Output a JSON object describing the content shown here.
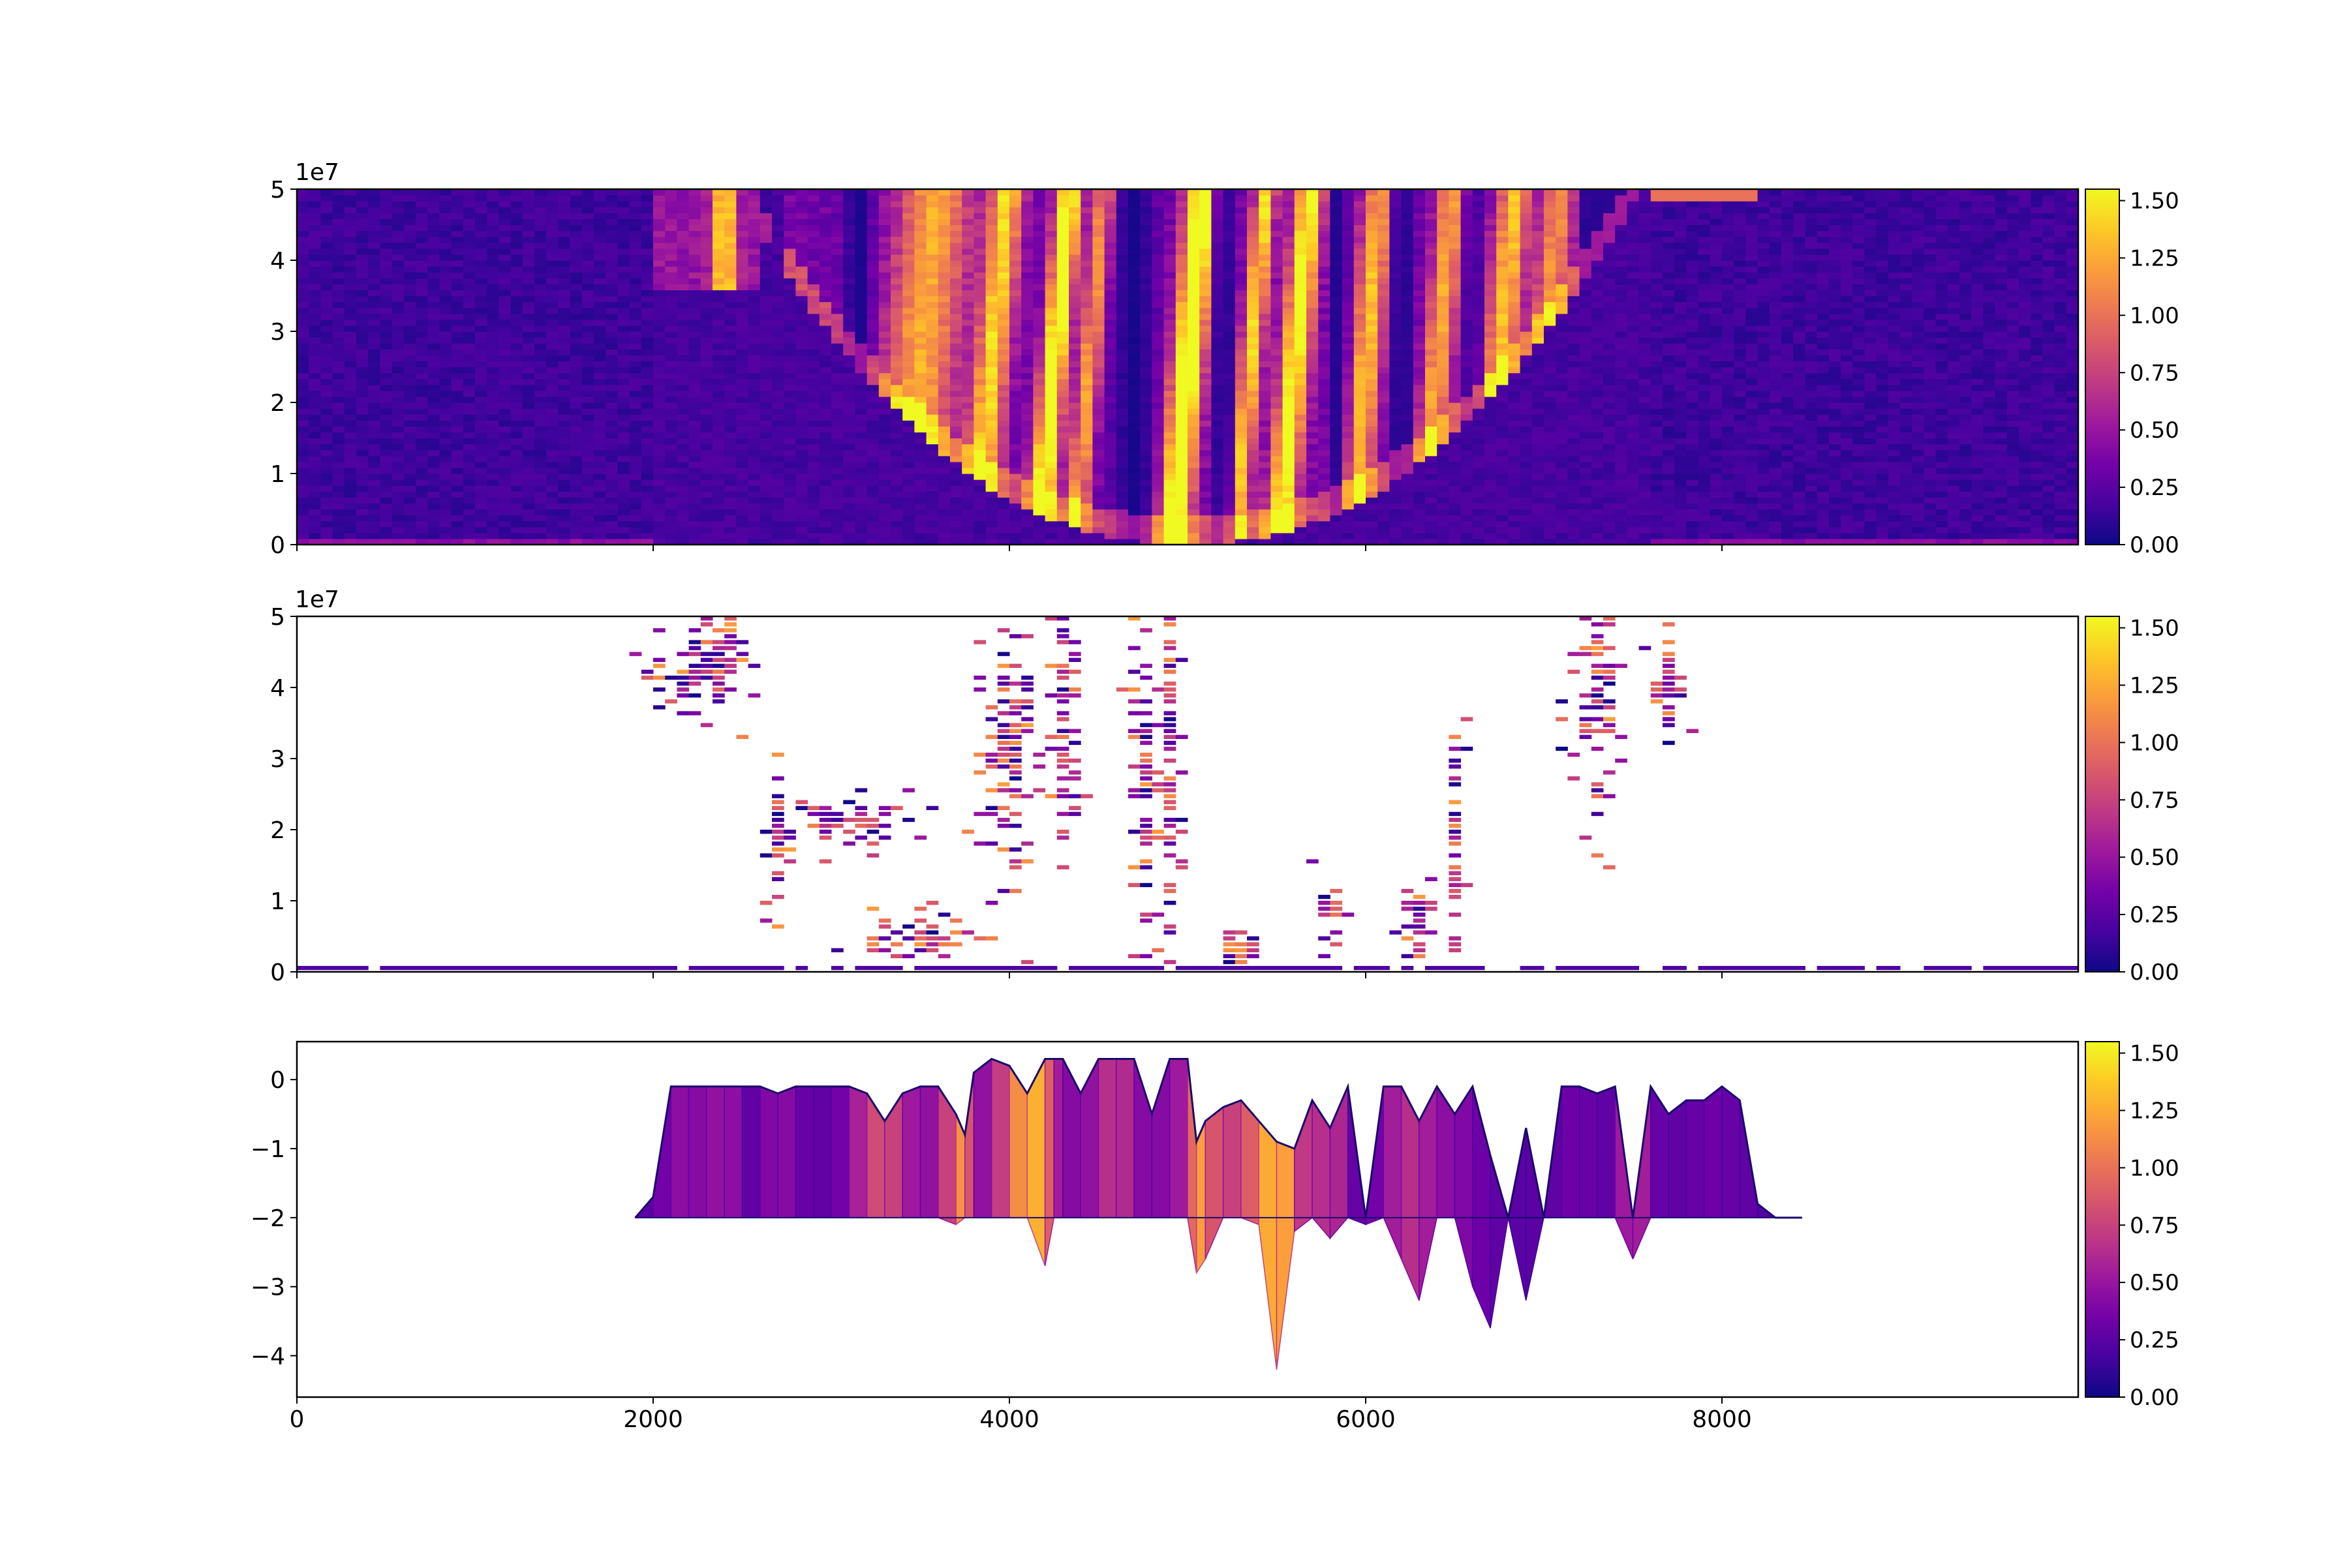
{
  "figure": {
    "colormap": "plasma",
    "colormap_stops": [
      "#0d0887",
      "#46039f",
      "#7201a8",
      "#9c179e",
      "#bd3786",
      "#d8576b",
      "#ed7953",
      "#fb9f3a",
      "#fdca26",
      "#f0f921"
    ],
    "nodata_color": "#ffffff",
    "shared_x_ticks": [
      0,
      2000,
      4000,
      6000,
      8000
    ],
    "x_tick_labels": [
      "0",
      "2000",
      "4000",
      "6000",
      "8000"
    ]
  },
  "chart_data": [
    {
      "panel": "top",
      "type": "heatmap",
      "title": "",
      "xlabel": "",
      "ylabel": "",
      "xlim": [
        0,
        10000
      ],
      "ylim": [
        0,
        50000000
      ],
      "y_offset_label": "1e7",
      "y_ticks": [
        0,
        10000000,
        20000000,
        30000000,
        40000000,
        50000000
      ],
      "y_tick_labels": [
        "0",
        "1",
        "2",
        "3",
        "4",
        "5"
      ],
      "colorbar": {
        "vmin": 0.0,
        "vmax": 1.55,
        "ticks": [
          "0.00",
          "0.25",
          "0.50",
          "0.75",
          "1.00",
          "1.25",
          "1.50"
        ]
      },
      "description_of_pattern": "dense spectrogram; bright streaks between x≈2000 and x≈7200, dark blue elsewhere"
    },
    {
      "panel": "middle",
      "type": "heatmap",
      "title": "",
      "xlabel": "",
      "ylabel": "",
      "xlim": [
        0,
        10000
      ],
      "ylim": [
        0,
        50000000
      ],
      "y_offset_label": "1e7",
      "y_ticks": [
        0,
        10000000,
        20000000,
        30000000,
        40000000,
        50000000
      ],
      "y_tick_labels": [
        "0",
        "1",
        "2",
        "3",
        "4",
        "5"
      ],
      "colorbar": {
        "vmin": 0.0,
        "vmax": 1.55,
        "ticks": [
          "0.00",
          "0.25",
          "0.50",
          "0.75",
          "1.00",
          "1.25",
          "1.50"
        ]
      },
      "description_of_pattern": "thresholded (masked) version of the top heatmap; sparse colored cells on white"
    },
    {
      "panel": "bottom",
      "type": "area",
      "title": "",
      "xlabel": "",
      "ylabel": "",
      "xlim": [
        0,
        10000
      ],
      "ylim": [
        -4.6,
        0.55
      ],
      "y_ticks": [
        0,
        -1,
        -2,
        -3,
        -4
      ],
      "y_tick_labels": [
        "0",
        "−1",
        "−2",
        "−3",
        "−4"
      ],
      "baseline": -2,
      "colorbar": {
        "vmin": 0.0,
        "vmax": 1.55,
        "ticks": [
          "0.00",
          "0.25",
          "0.50",
          "0.75",
          "1.00",
          "1.25",
          "1.50"
        ]
      },
      "x": [
        1900,
        2000,
        2100,
        2200,
        2300,
        2400,
        2500,
        2600,
        2700,
        2800,
        2900,
        3000,
        3100,
        3200,
        3300,
        3400,
        3500,
        3600,
        3700,
        3750,
        3800,
        3900,
        4000,
        4100,
        4200,
        4250,
        4300,
        4400,
        4500,
        4600,
        4700,
        4800,
        4900,
        5000,
        5050,
        5100,
        5200,
        5300,
        5400,
        5500,
        5600,
        5700,
        5800,
        5900,
        6000,
        6100,
        6200,
        6300,
        6400,
        6500,
        6600,
        6700,
        6800,
        6900,
        7000,
        7100,
        7200,
        7300,
        7400,
        7500,
        7600,
        7700,
        7800,
        7900,
        8000,
        8100,
        8200,
        8300,
        8450
      ],
      "top": [
        -2.0,
        -1.7,
        -0.1,
        -0.1,
        -0.1,
        -0.1,
        -0.1,
        -0.1,
        -0.2,
        -0.1,
        -0.1,
        -0.1,
        -0.1,
        -0.2,
        -0.6,
        -0.2,
        -0.1,
        -0.1,
        -0.5,
        -0.8,
        0.1,
        0.3,
        0.2,
        -0.2,
        0.3,
        0.3,
        0.3,
        -0.2,
        0.3,
        0.3,
        0.3,
        -0.5,
        0.3,
        0.3,
        -0.9,
        -0.6,
        -0.4,
        -0.3,
        -0.6,
        -0.9,
        -1.0,
        -0.3,
        -0.7,
        -0.1,
        -2.0,
        -0.1,
        -0.1,
        -0.6,
        -0.1,
        -0.5,
        -0.1,
        -1.1,
        -2.0,
        -0.7,
        -2.0,
        -0.1,
        -0.1,
        -0.2,
        -0.1,
        -2.0,
        -0.1,
        -0.5,
        -0.3,
        -0.3,
        -0.1,
        -0.3,
        -1.8,
        -2.0,
        -2.0
      ],
      "bottom": [
        -2.0,
        -2.0,
        -2.0,
        -2.0,
        -2.0,
        -2.0,
        -2.0,
        -2.0,
        -2.0,
        -2.0,
        -2.0,
        -2.0,
        -2.0,
        -2.0,
        -2.0,
        -2.0,
        -2.0,
        -2.0,
        -2.1,
        -2.0,
        -2.0,
        -2.0,
        -2.0,
        -2.0,
        -2.7,
        -2.0,
        -2.0,
        -2.0,
        -2.0,
        -2.0,
        -2.0,
        -2.0,
        -2.0,
        -2.0,
        -2.8,
        -2.6,
        -2.0,
        -2.0,
        -2.1,
        -4.2,
        -2.2,
        -2.0,
        -2.3,
        -2.0,
        -2.1,
        -2.0,
        -2.6,
        -3.2,
        -2.0,
        -2.0,
        -3.0,
        -3.6,
        -2.0,
        -3.2,
        -2.0,
        -2.0,
        -2.0,
        -2.0,
        -2.0,
        -2.6,
        -2.0,
        -2.0,
        -2.0,
        -2.0,
        -2.0,
        -2.0,
        -2.0,
        -2.0,
        -2.0
      ],
      "fill_level": [
        0.2,
        0.3,
        0.4,
        0.5,
        0.35,
        0.6,
        0.3,
        0.25,
        0.55,
        0.3,
        0.3,
        0.25,
        0.45,
        0.7,
        0.9,
        0.6,
        0.45,
        0.5,
        1.0,
        1.3,
        0.4,
        0.55,
        0.9,
        1.35,
        1.2,
        0.6,
        0.5,
        0.35,
        0.6,
        0.7,
        0.55,
        0.3,
        0.55,
        0.5,
        1.4,
        1.0,
        0.7,
        0.8,
        1.0,
        1.5,
        0.9,
        0.5,
        0.8,
        0.4,
        0.2,
        0.5,
        0.6,
        0.7,
        0.4,
        0.5,
        0.3,
        0.35,
        0.2,
        0.3,
        0.2,
        0.35,
        0.3,
        0.3,
        0.25,
        0.8,
        0.3,
        0.3,
        0.25,
        0.35,
        0.3,
        0.3,
        0.25,
        0.2,
        0.2
      ]
    }
  ]
}
